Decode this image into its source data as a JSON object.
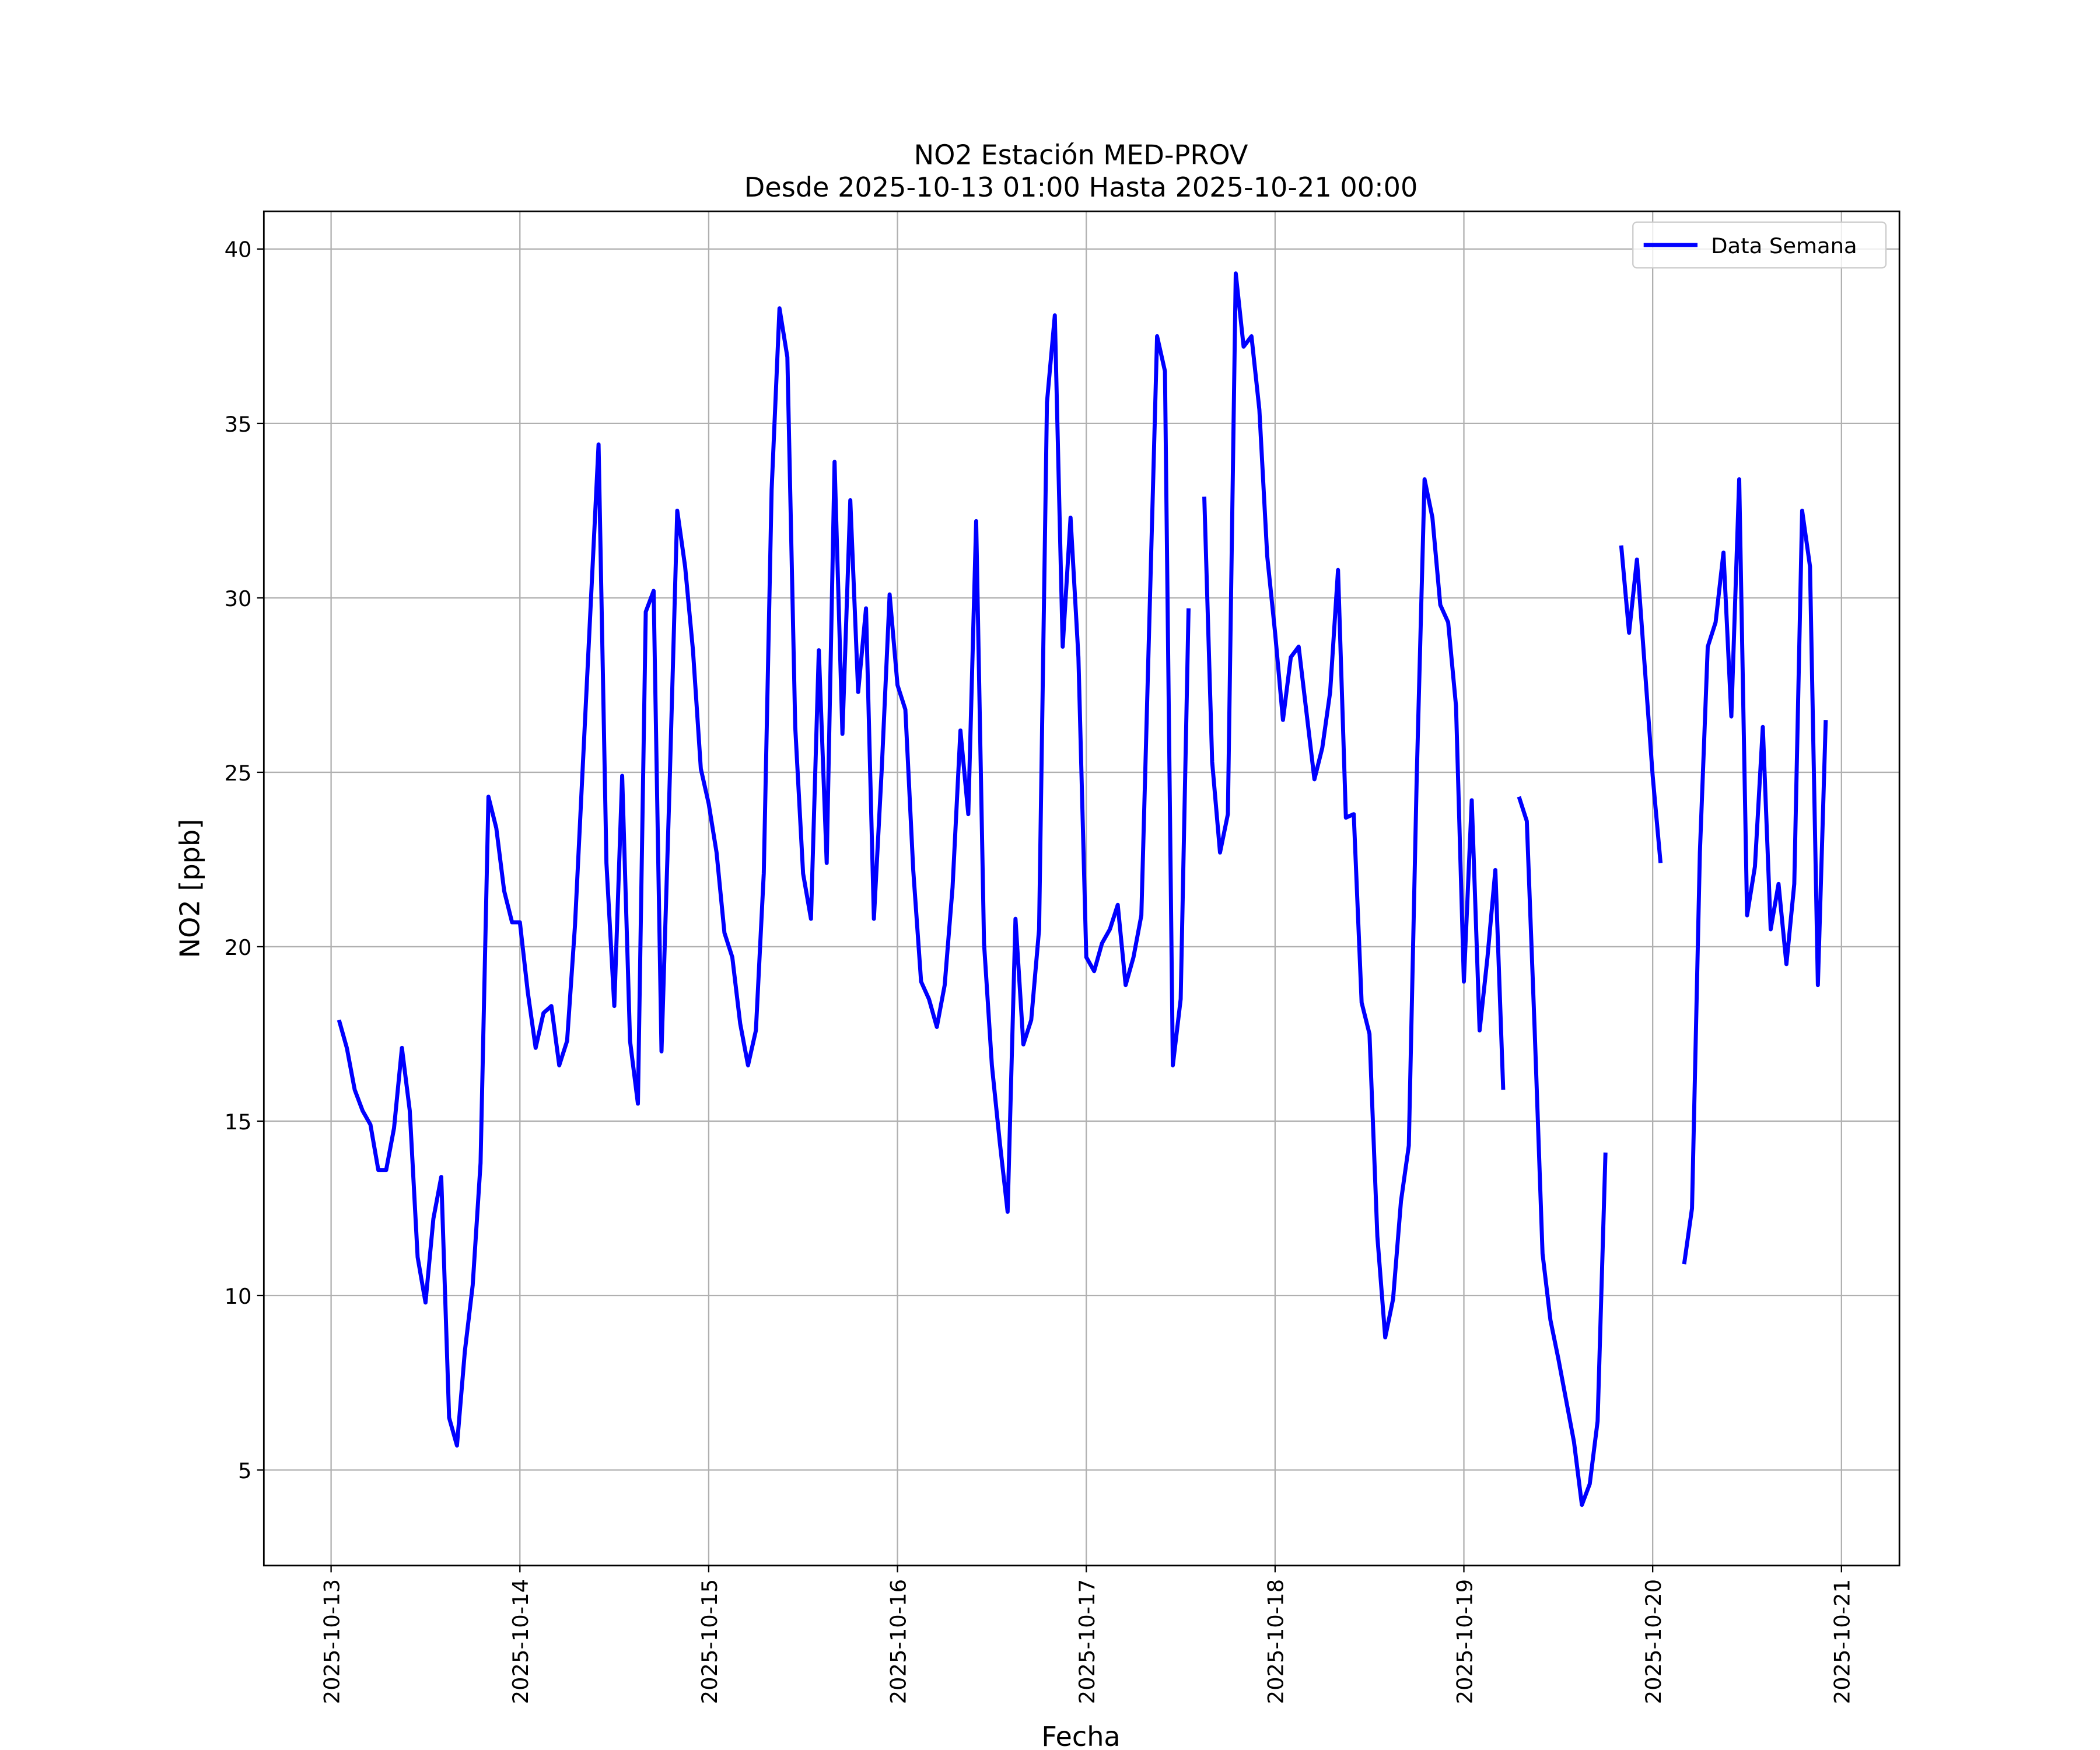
{
  "chart_data": {
    "type": "line",
    "title": "NO2 Estación MED-PROV",
    "subtitle": "Desde 2025-10-13 01:00 Hasta 2025-10-21 00:00",
    "xlabel": "Fecha",
    "ylabel": "NO2 [ppb]",
    "legend": "upper right",
    "grid": true,
    "xlim": [
      "2025-10-12 15:27",
      "2025-10-21 07:22"
    ],
    "xticks": [
      "2025-10-13",
      "2025-10-14",
      "2025-10-15",
      "2025-10-16",
      "2025-10-17",
      "2025-10-18",
      "2025-10-19",
      "2025-10-20",
      "2025-10-21"
    ],
    "ylim": [
      2.26,
      41.08
    ],
    "yticks": [
      5,
      10,
      15,
      20,
      25,
      30,
      35,
      40
    ],
    "x": [
      "2025-10-13 01:00",
      "2025-10-13 02:00",
      "2025-10-13 03:00",
      "2025-10-13 04:00",
      "2025-10-13 05:00",
      "2025-10-13 06:00",
      "2025-10-13 07:00",
      "2025-10-13 08:00",
      "2025-10-13 09:00",
      "2025-10-13 10:00",
      "2025-10-13 11:00",
      "2025-10-13 12:00",
      "2025-10-13 13:00",
      "2025-10-13 14:00",
      "2025-10-13 15:00",
      "2025-10-13 16:00",
      "2025-10-13 17:00",
      "2025-10-13 18:00",
      "2025-10-13 19:00",
      "2025-10-13 20:00",
      "2025-10-13 21:00",
      "2025-10-13 22:00",
      "2025-10-13 23:00",
      "2025-10-14 00:00",
      "2025-10-14 01:00",
      "2025-10-14 02:00",
      "2025-10-14 03:00",
      "2025-10-14 04:00",
      "2025-10-14 05:00",
      "2025-10-14 06:00",
      "2025-10-14 07:00",
      "2025-10-14 08:00",
      "2025-10-14 09:00",
      "2025-10-14 10:00",
      "2025-10-14 11:00",
      "2025-10-14 12:00",
      "2025-10-14 13:00",
      "2025-10-14 14:00",
      "2025-10-14 15:00",
      "2025-10-14 16:00",
      "2025-10-14 17:00",
      "2025-10-14 18:00",
      "2025-10-14 19:00",
      "2025-10-14 20:00",
      "2025-10-14 21:00",
      "2025-10-14 22:00",
      "2025-10-14 23:00",
      "2025-10-15 00:00",
      "2025-10-15 01:00",
      "2025-10-15 02:00",
      "2025-10-15 03:00",
      "2025-10-15 04:00",
      "2025-10-15 05:00",
      "2025-10-15 06:00",
      "2025-10-15 07:00",
      "2025-10-15 08:00",
      "2025-10-15 09:00",
      "2025-10-15 10:00",
      "2025-10-15 11:00",
      "2025-10-15 12:00",
      "2025-10-15 13:00",
      "2025-10-15 14:00",
      "2025-10-15 15:00",
      "2025-10-15 16:00",
      "2025-10-15 17:00",
      "2025-10-15 18:00",
      "2025-10-15 19:00",
      "2025-10-15 20:00",
      "2025-10-15 21:00",
      "2025-10-15 22:00",
      "2025-10-15 23:00",
      "2025-10-16 00:00",
      "2025-10-16 01:00",
      "2025-10-16 02:00",
      "2025-10-16 03:00",
      "2025-10-16 04:00",
      "2025-10-16 05:00",
      "2025-10-16 06:00",
      "2025-10-16 07:00",
      "2025-10-16 08:00",
      "2025-10-16 09:00",
      "2025-10-16 10:00",
      "2025-10-16 11:00",
      "2025-10-16 12:00",
      "2025-10-16 13:00",
      "2025-10-16 14:00",
      "2025-10-16 15:00",
      "2025-10-16 16:00",
      "2025-10-16 17:00",
      "2025-10-16 18:00",
      "2025-10-16 19:00",
      "2025-10-16 20:00",
      "2025-10-16 21:00",
      "2025-10-16 22:00",
      "2025-10-16 23:00",
      "2025-10-17 00:00",
      "2025-10-17 01:00",
      "2025-10-17 02:00",
      "2025-10-17 03:00",
      "2025-10-17 04:00",
      "2025-10-17 05:00",
      "2025-10-17 06:00",
      "2025-10-17 07:00",
      "2025-10-17 08:00",
      "2025-10-17 09:00",
      "2025-10-17 10:00",
      "2025-10-17 11:00",
      "2025-10-17 12:00",
      "2025-10-17 13:00",
      "2025-10-17 14:00",
      "2025-10-17 15:00",
      "2025-10-17 16:00",
      "2025-10-17 17:00",
      "2025-10-17 18:00",
      "2025-10-17 19:00",
      "2025-10-17 20:00",
      "2025-10-17 21:00",
      "2025-10-17 22:00",
      "2025-10-17 23:00",
      "2025-10-18 00:00",
      "2025-10-18 01:00",
      "2025-10-18 02:00",
      "2025-10-18 03:00",
      "2025-10-18 04:00",
      "2025-10-18 05:00",
      "2025-10-18 06:00",
      "2025-10-18 07:00",
      "2025-10-18 08:00",
      "2025-10-18 09:00",
      "2025-10-18 10:00",
      "2025-10-18 11:00",
      "2025-10-18 12:00",
      "2025-10-18 13:00",
      "2025-10-18 14:00",
      "2025-10-18 15:00",
      "2025-10-18 16:00",
      "2025-10-18 17:00",
      "2025-10-18 18:00",
      "2025-10-18 19:00",
      "2025-10-18 20:00",
      "2025-10-18 21:00",
      "2025-10-18 22:00",
      "2025-10-18 23:00",
      "2025-10-19 00:00",
      "2025-10-19 01:00",
      "2025-10-19 02:00",
      "2025-10-19 03:00",
      "2025-10-19 04:00",
      "2025-10-19 05:00",
      "2025-10-19 06:00",
      "2025-10-19 07:00",
      "2025-10-19 08:00",
      "2025-10-19 09:00",
      "2025-10-19 10:00",
      "2025-10-19 11:00",
      "2025-10-19 12:00",
      "2025-10-19 13:00",
      "2025-10-19 14:00",
      "2025-10-19 15:00",
      "2025-10-19 16:00",
      "2025-10-19 17:00",
      "2025-10-19 18:00",
      "2025-10-19 19:00",
      "2025-10-19 20:00",
      "2025-10-19 21:00",
      "2025-10-19 22:00",
      "2025-10-19 23:00",
      "2025-10-20 00:00",
      "2025-10-20 01:00",
      "2025-10-20 02:00",
      "2025-10-20 03:00",
      "2025-10-20 04:00",
      "2025-10-20 05:00",
      "2025-10-20 06:00",
      "2025-10-20 07:00",
      "2025-10-20 08:00",
      "2025-10-20 09:00",
      "2025-10-20 10:00",
      "2025-10-20 11:00",
      "2025-10-20 12:00",
      "2025-10-20 13:00",
      "2025-10-20 14:00",
      "2025-10-20 15:00",
      "2025-10-20 16:00",
      "2025-10-20 17:00",
      "2025-10-20 18:00",
      "2025-10-20 19:00",
      "2025-10-20 20:00",
      "2025-10-20 21:00",
      "2025-10-20 22:00"
    ],
    "series": [
      {
        "name": "Data Semana",
        "color": "#0000ff",
        "values": [
          17.9,
          17.1,
          15.9,
          15.3,
          14.9,
          13.6,
          13.6,
          14.8,
          17.1,
          15.3,
          11.1,
          9.8,
          12.2,
          13.4,
          6.5,
          5.7,
          8.4,
          10.3,
          13.8,
          24.3,
          23.4,
          21.6,
          20.7,
          20.7,
          18.7,
          17.1,
          18.1,
          18.3,
          16.6,
          17.3,
          20.6,
          25.2,
          29.8,
          34.4,
          22.4,
          18.3,
          24.9,
          17.3,
          15.5,
          29.6,
          30.2,
          17.0,
          24.4,
          32.5,
          30.9,
          28.5,
          25.1,
          24.1,
          22.7,
          20.4,
          19.7,
          17.8,
          16.6,
          17.6,
          22.1,
          33.1,
          38.3,
          36.9,
          26.3,
          22.1,
          20.8,
          28.5,
          22.4,
          33.9,
          26.1,
          32.8,
          27.3,
          29.7,
          20.8,
          25.1,
          30.1,
          27.5,
          26.8,
          22.2,
          19.0,
          18.5,
          17.7,
          18.9,
          21.7,
          26.2,
          23.8,
          32.2,
          20.1,
          16.6,
          14.4,
          12.4,
          20.8,
          17.2,
          17.9,
          20.5,
          35.6,
          38.1,
          28.6,
          32.3,
          28.3,
          19.7,
          19.3,
          20.1,
          20.5,
          21.2,
          18.9,
          19.7,
          20.9,
          29.2,
          37.5,
          36.5,
          16.6,
          18.5,
          29.7,
          null,
          32.9,
          25.3,
          22.7,
          23.8,
          39.3,
          37.2,
          37.5,
          35.4,
          31.2,
          29.0,
          26.5,
          28.3,
          28.6,
          26.7,
          24.8,
          25.7,
          27.3,
          30.8,
          23.7,
          23.8,
          18.4,
          17.5,
          11.7,
          8.8,
          9.9,
          12.7,
          14.3,
          24.8,
          33.4,
          32.3,
          29.8,
          29.3,
          26.9,
          19.0,
          24.2,
          17.6,
          19.7,
          22.2,
          15.9,
          null,
          24.3,
          23.6,
          17.6,
          11.2,
          9.3,
          8.2,
          7.0,
          5.8,
          4.0,
          4.6,
          6.4,
          14.1,
          null,
          31.5,
          29.0,
          31.1,
          28.0,
          24.9,
          22.4,
          null,
          null,
          10.9,
          12.5,
          22.7,
          28.6,
          29.3,
          31.3,
          26.6,
          33.4,
          20.9,
          22.3,
          26.3,
          20.5,
          21.8,
          19.5,
          21.8,
          32.5,
          30.9,
          18.9,
          26.5
        ]
      }
    ]
  }
}
